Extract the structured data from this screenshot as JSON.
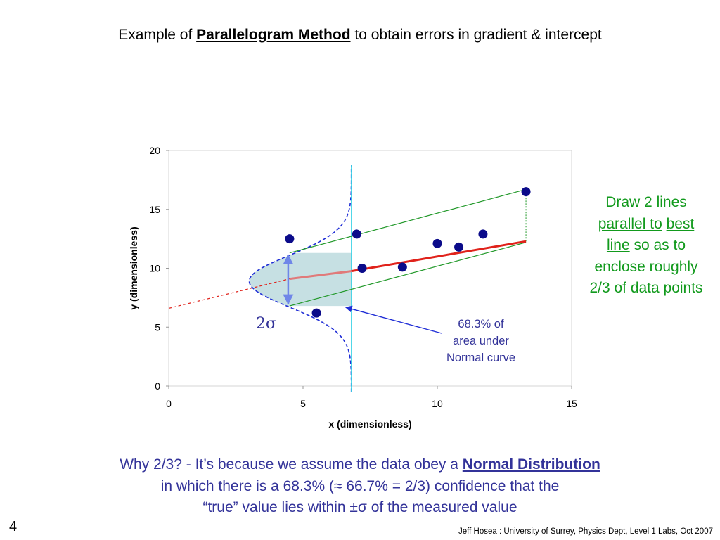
{
  "title": {
    "prefix": "Example of ",
    "emphasis": "Parallelogram Method",
    "suffix": " to obtain errors in gradient & intercept"
  },
  "chart_data": {
    "type": "scatter",
    "title": "",
    "xlabel": "x (dimensionless)",
    "ylabel": "y (dimensionless)",
    "xlim": [
      0,
      15
    ],
    "ylim": [
      0,
      20
    ],
    "xticks": [
      "0",
      "5",
      "10",
      "15"
    ],
    "yticks": [
      "0",
      "5",
      "10",
      "15",
      "20"
    ],
    "grid": false,
    "points": [
      {
        "x": 4.5,
        "y": 12.5
      },
      {
        "x": 5.5,
        "y": 6.2
      },
      {
        "x": 7.0,
        "y": 12.9
      },
      {
        "x": 7.2,
        "y": 10.0
      },
      {
        "x": 8.7,
        "y": 10.1
      },
      {
        "x": 10.0,
        "y": 12.1
      },
      {
        "x": 10.8,
        "y": 11.8
      },
      {
        "x": 11.7,
        "y": 12.9
      },
      {
        "x": 13.3,
        "y": 16.5
      }
    ],
    "best_fit": {
      "slope": 0.39,
      "intercept": 7.1,
      "x_start": 6.8,
      "x_end": 13.3
    },
    "upper_line": {
      "x_start": 4.5,
      "y_start": 11.3,
      "x_end": 13.3,
      "y_end": 16.7
    },
    "lower_line": {
      "x_start": 4.5,
      "y_start": 6.8,
      "x_end": 13.3,
      "y_end": 12.2
    },
    "extrapolation": {
      "x_start": 0,
      "y_start": 6.6,
      "x_end": 4.5,
      "y_end": 9.1
    },
    "normal_curve": {
      "center_y": 8.9,
      "sigma": 2.2,
      "peak_x": 3.0,
      "baseline_x": 6.8,
      "y_min": -0.5,
      "y_max": 18.8
    },
    "shaded_band": {
      "x_start": 4.5,
      "x_end": 6.8,
      "y_low": 6.8,
      "y_high": 11.3
    },
    "colors": {
      "points": "#0b0b8a",
      "best_fit": "#e0221b",
      "best_fit_faded": "#e07a7a",
      "bounds": "#22992a",
      "normal_curve": "#1f2dd6",
      "shading": "#c6e0e3",
      "vertical": "#3cd2e6",
      "sigma_arrow": "#6f86e8",
      "annotation_arrow": "#1f2dd6"
    }
  },
  "sigma_label": "2σ",
  "annotation": {
    "line1": "68.3% of",
    "line2": "area under",
    "line3": "Normal curve"
  },
  "side_note": {
    "part1": "Draw 2 lines ",
    "part2": "parallel to",
    "part3": " ",
    "part4": "best line",
    "part5": " so as to enclose roughly 2/3 of data points"
  },
  "footer": {
    "line1_prefix": "Why 2/3?  - It’s because we assume the data obey a ",
    "line1_emphasis": "Normal Distribution",
    "line2": "in which there is a 68.3% (≈ 66.7% = 2/3) confidence that the",
    "line3": "“true” value lies within ±σ of the measured value"
  },
  "slide_number": "4",
  "credit": "Jeff Hosea : University of Surrey, Physics Dept, Level 1 Labs, Oct 2007"
}
